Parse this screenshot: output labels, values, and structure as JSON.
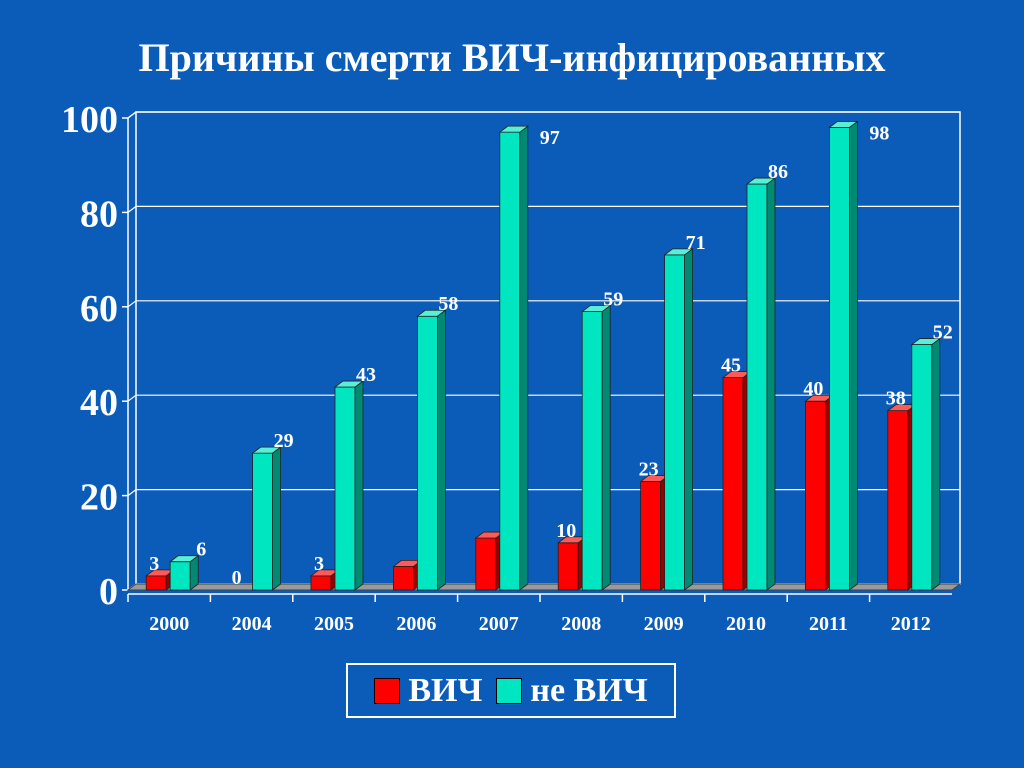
{
  "title": "Причины смерти ВИЧ-инфицированных",
  "chart_data": {
    "type": "bar",
    "title": "Причины смерти ВИЧ-инфицированных",
    "categories": [
      "2000",
      "2004",
      "2005",
      "2006",
      "2007",
      "2008",
      "2009",
      "2010",
      "2011",
      "2012"
    ],
    "series": [
      {
        "name": "ВИЧ",
        "color": "#FF0000",
        "values": [
          3,
          0,
          3,
          5,
          11,
          10,
          23,
          45,
          40,
          38
        ],
        "labels": [
          "3",
          "0",
          "3",
          "",
          "",
          "10",
          "23",
          "45",
          "40",
          "38"
        ]
      },
      {
        "name": "не ВИЧ",
        "color": "#00E6C0",
        "values": [
          6,
          29,
          43,
          58,
          97,
          59,
          71,
          86,
          98,
          52
        ],
        "labels": [
          "6",
          "29",
          "43",
          "58",
          "97",
          "59",
          "71",
          "86",
          "98",
          "52"
        ]
      }
    ],
    "ylim": [
      0,
      100
    ],
    "yticks": [
      "0",
      "20",
      "40",
      "60",
      "80",
      "100"
    ],
    "grid": true,
    "legend_position": "bottom"
  }
}
